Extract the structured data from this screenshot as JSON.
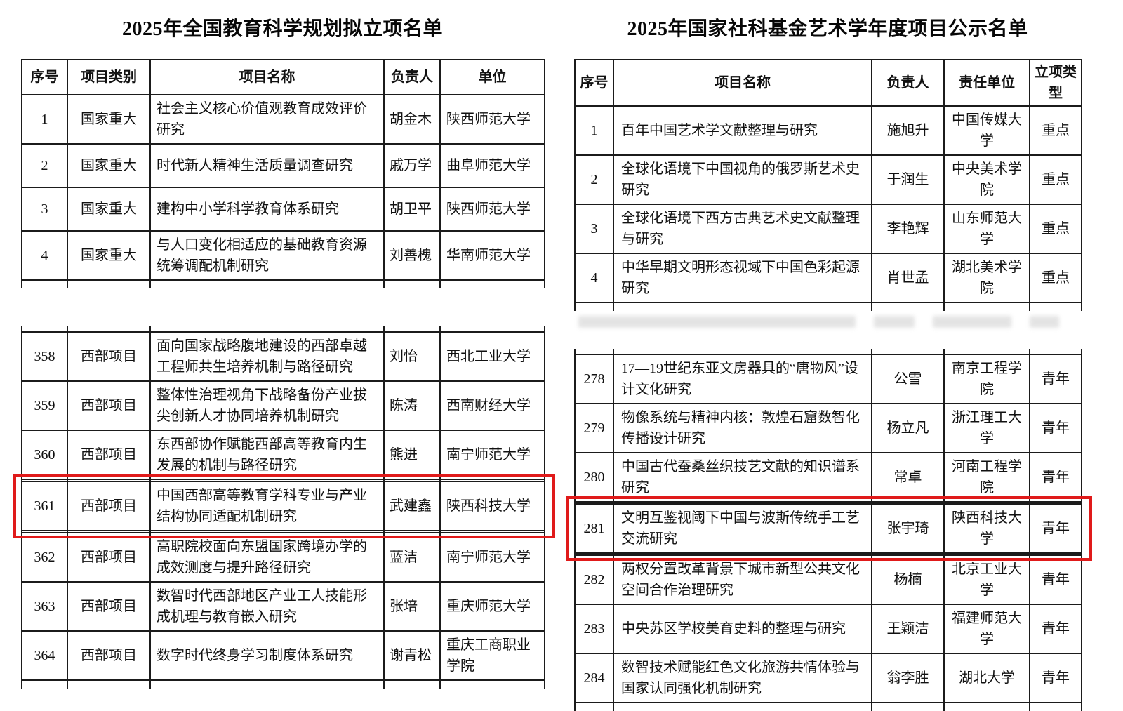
{
  "highlight_color": "#e01a1a",
  "left_table": {
    "title": "2025年全国教育科学规划拟立项名单",
    "headers": [
      "序号",
      "项目类别",
      "项目名称",
      "负责人",
      "单位"
    ],
    "highlight": "361",
    "section1": [
      [
        "1",
        "国家重大",
        "社会主义核心价值观教育成效评价研究",
        "胡金木",
        "陕西师范大学"
      ],
      [
        "2",
        "国家重大",
        "时代新人精神生活质量调查研究",
        "戚万学",
        "曲阜师范大学"
      ],
      [
        "3",
        "国家重大",
        "建构中小学科学教育体系研究",
        "胡卫平",
        "陕西师范大学"
      ],
      [
        "4",
        "国家重大",
        "与人口变化相适应的基础教育资源统筹调配机制研究",
        "刘善槐",
        "华南师范大学"
      ]
    ],
    "section2": [
      [
        "358",
        "西部项目",
        "面向国家战略腹地建设的西部卓越工程师共生培养机制与路径研究",
        "刘怡",
        "西北工业大学"
      ],
      [
        "359",
        "西部项目",
        "整体性治理视角下战略备份产业拔尖创新人才协同培养机制研究",
        "陈涛",
        "西南财经大学"
      ],
      [
        "360",
        "西部项目",
        "东西部协作赋能西部高等教育内生发展的机制与路径研究",
        "熊进",
        "南宁师范大学"
      ],
      [
        "361",
        "西部项目",
        "中国西部高等教育学科专业与产业结构协同适配机制研究",
        "武建鑫",
        "陕西科技大学"
      ],
      [
        "362",
        "西部项目",
        "高职院校面向东盟国家跨境办学的成效测度与提升路径研究",
        "蓝洁",
        "南宁师范大学"
      ],
      [
        "363",
        "西部项目",
        "数智时代西部地区产业工人技能形成机理与教育嵌入研究",
        "张培",
        "重庆师范大学"
      ],
      [
        "364",
        "西部项目",
        "数字时代终身学习制度体系研究",
        "谢青松",
        "重庆工商职业学院"
      ]
    ]
  },
  "right_table": {
    "title": "2025年国家社科基金艺术学年度项目公示名单",
    "headers": [
      "序号",
      "项目名称",
      "负责人",
      "责任单位",
      "立项类型"
    ],
    "highlight": "281",
    "section1": [
      [
        "1",
        "百年中国艺术学文献整理与研究",
        "施旭升",
        "中国传媒大学",
        "重点"
      ],
      [
        "2",
        "全球化语境下中国视角的俄罗斯艺术史研究",
        "于润生",
        "中央美术学院",
        "重点"
      ],
      [
        "3",
        "全球化语境下西方古典艺术史文献整理与研究",
        "李艳辉",
        "山东师范大学",
        "重点"
      ],
      [
        "4",
        "中华早期文明形态视域下中国色彩起源研究",
        "肖世孟",
        "湖北美术学院",
        "重点"
      ]
    ],
    "section2": [
      [
        "278",
        "17—19世纪东亚文房器具的“唐物风”设计文化研究",
        "公雪",
        "南京工程学院",
        "青年"
      ],
      [
        "279",
        "物像系统与精神内核：敦煌石窟数智化传播设计研究",
        "杨立凡",
        "浙江理工大学",
        "青年"
      ],
      [
        "280",
        "中国古代蚕桑丝织技艺文献的知识谱系研究",
        "常卓",
        "河南工程学院",
        "青年"
      ],
      [
        "281",
        "文明互鉴视阈下中国与波斯传统手工艺交流研究",
        "张宇琦",
        "陕西科技大学",
        "青年"
      ],
      [
        "282",
        "两权分置改革背景下城市新型公共文化空间合作治理研究",
        "杨楠",
        "北京工业大学",
        "青年"
      ],
      [
        "283",
        "中央苏区学校美育史料的整理与研究",
        "王颖洁",
        "福建师范大学",
        "青年"
      ],
      [
        "284",
        "数智技术赋能红色文化旅游共情体验与国家认同强化机制研究",
        "翁李胜",
        "湖北大学",
        "青年"
      ]
    ]
  }
}
